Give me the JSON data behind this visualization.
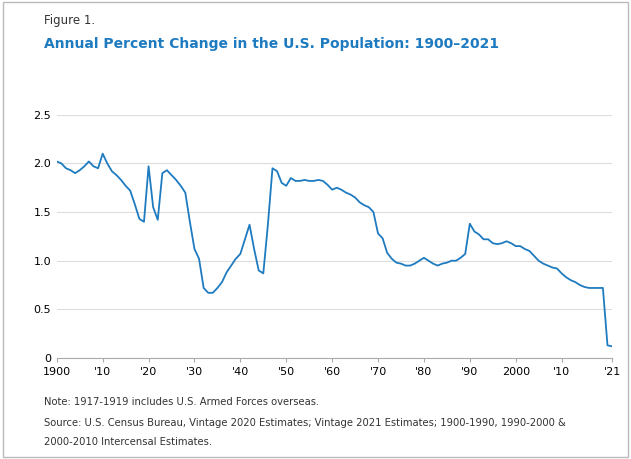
{
  "title_figure": "Figure 1.",
  "title_main": "Annual Percent Change in the U.S. Population: 1900–2021",
  "title_color": "#1F7BC0",
  "figure_label_color": "#333333",
  "line_color": "#1F7BC0",
  "line_width": 1.3,
  "background_color": "#FFFFFF",
  "border_color": "#BBBBBB",
  "note_line1": "Note: 1917-1919 includes U.S. Armed Forces overseas.",
  "note_line2": "Source: U.S. Census Bureau, Vintage 2020 Estimates; Vintage 2021 Estimates; 1900-1990, 1990-2000 &",
  "note_line3": "2000-2010 Intercensal Estimates.",
  "xlim": [
    1900,
    2021
  ],
  "ylim": [
    0,
    2.5
  ],
  "xticks": [
    1900,
    1910,
    1920,
    1930,
    1940,
    1950,
    1960,
    1970,
    1980,
    1990,
    2000,
    2010,
    2021
  ],
  "xticklabels": [
    "1900",
    "'10",
    "'20",
    "'30",
    "'40",
    "'50",
    "'60",
    "'70",
    "'80",
    "'90",
    "2000",
    "'10",
    "'21"
  ],
  "yticks": [
    0,
    0.5,
    1.0,
    1.5,
    2.0,
    2.5
  ],
  "grid_color": "#DDDDDD",
  "years": [
    1900,
    1901,
    1902,
    1903,
    1904,
    1905,
    1906,
    1907,
    1908,
    1909,
    1910,
    1911,
    1912,
    1913,
    1914,
    1915,
    1916,
    1917,
    1918,
    1919,
    1920,
    1921,
    1922,
    1923,
    1924,
    1925,
    1926,
    1927,
    1928,
    1929,
    1930,
    1931,
    1932,
    1933,
    1934,
    1935,
    1936,
    1937,
    1938,
    1939,
    1940,
    1941,
    1942,
    1943,
    1944,
    1945,
    1946,
    1947,
    1948,
    1949,
    1950,
    1951,
    1952,
    1953,
    1954,
    1955,
    1956,
    1957,
    1958,
    1959,
    1960,
    1961,
    1962,
    1963,
    1964,
    1965,
    1966,
    1967,
    1968,
    1969,
    1970,
    1971,
    1972,
    1973,
    1974,
    1975,
    1976,
    1977,
    1978,
    1979,
    1980,
    1981,
    1982,
    1983,
    1984,
    1985,
    1986,
    1987,
    1988,
    1989,
    1990,
    1991,
    1992,
    1993,
    1994,
    1995,
    1996,
    1997,
    1998,
    1999,
    2000,
    2001,
    2002,
    2003,
    2004,
    2005,
    2006,
    2007,
    2008,
    2009,
    2010,
    2011,
    2012,
    2013,
    2014,
    2015,
    2016,
    2017,
    2018,
    2019,
    2020,
    2021
  ],
  "values": [
    2.02,
    2.0,
    1.95,
    1.93,
    1.9,
    1.93,
    1.97,
    2.02,
    1.97,
    1.95,
    2.1,
    2.0,
    1.92,
    1.88,
    1.83,
    1.77,
    1.72,
    1.58,
    1.43,
    1.4,
    1.97,
    1.55,
    1.42,
    1.9,
    1.93,
    1.88,
    1.83,
    1.77,
    1.7,
    1.4,
    1.12,
    1.02,
    0.72,
    0.67,
    0.67,
    0.72,
    0.78,
    0.88,
    0.95,
    1.02,
    1.07,
    1.22,
    1.37,
    1.12,
    0.9,
    0.87,
    1.37,
    1.95,
    1.92,
    1.8,
    1.77,
    1.85,
    1.82,
    1.82,
    1.83,
    1.82,
    1.82,
    1.83,
    1.82,
    1.78,
    1.73,
    1.75,
    1.73,
    1.7,
    1.68,
    1.65,
    1.6,
    1.57,
    1.55,
    1.5,
    1.28,
    1.23,
    1.08,
    1.02,
    0.98,
    0.97,
    0.95,
    0.95,
    0.97,
    1.0,
    1.03,
    1.0,
    0.97,
    0.95,
    0.97,
    0.98,
    1.0,
    1.0,
    1.03,
    1.07,
    1.38,
    1.3,
    1.27,
    1.22,
    1.22,
    1.18,
    1.17,
    1.18,
    1.2,
    1.18,
    1.15,
    1.15,
    1.12,
    1.1,
    1.05,
    1.0,
    0.97,
    0.95,
    0.93,
    0.92,
    0.87,
    0.83,
    0.8,
    0.78,
    0.75,
    0.73,
    0.72,
    0.72,
    0.72,
    0.72,
    0.13,
    0.12
  ]
}
